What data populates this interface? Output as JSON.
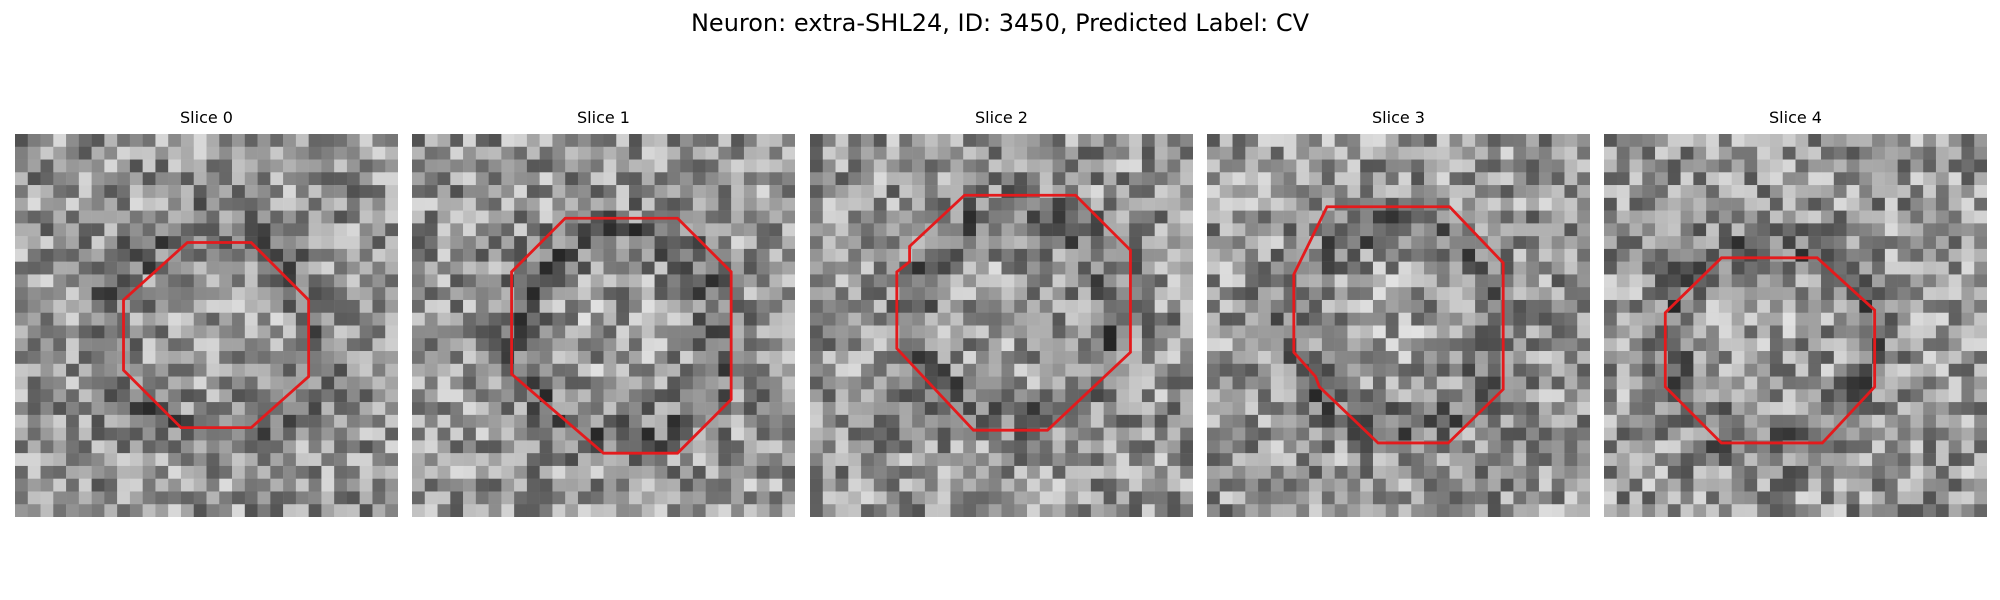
{
  "title": "Neuron: extra-SHL24, ID: 3450, Predicted Label: CV",
  "slices": [
    {
      "label": "Slice 0"
    },
    {
      "label": "Slice 1"
    },
    {
      "label": "Slice 2"
    },
    {
      "label": "Slice 3"
    },
    {
      "label": "Slice 4"
    }
  ],
  "colors": {
    "contour": "#e41a1c",
    "background": "#ffffff"
  }
}
